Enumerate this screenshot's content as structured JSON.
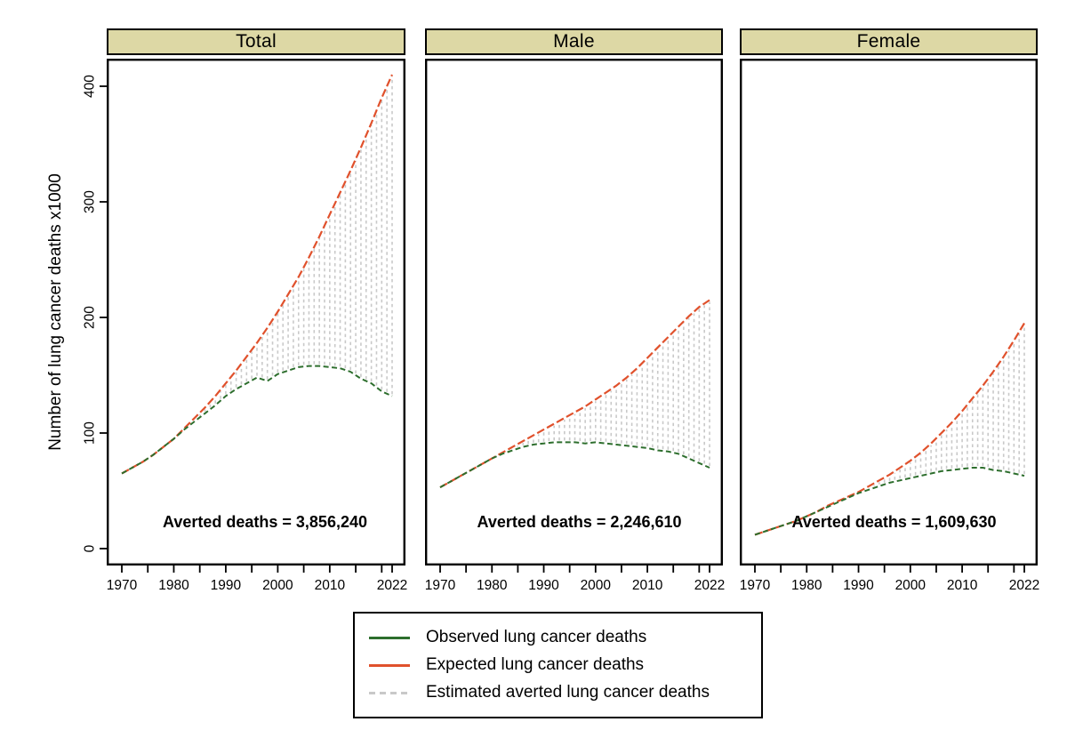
{
  "figure": {
    "background": "#ffffff",
    "ylabel": "Number of lung cancer deaths x1000"
  },
  "colors": {
    "strip_fill": "#ddd8a5",
    "strip_border": "#000000",
    "panel_border": "#000000",
    "observed": "#2d6e2d",
    "expected": "#e0512c",
    "averted": "#c9c9c9",
    "text": "#000000"
  },
  "axes": {
    "x_ticks_labeled": [
      1970,
      1980,
      1990,
      2000,
      2010,
      2022
    ],
    "x_ticks_minor": [
      1975,
      1985,
      1995,
      2005,
      2015,
      2020
    ],
    "y_ticks": [
      0,
      100,
      200,
      300,
      400
    ]
  },
  "legend": {
    "items": [
      {
        "name": "observed",
        "label": "Observed lung cancer deaths",
        "color": "#2d6e2d",
        "style": "solid"
      },
      {
        "name": "expected",
        "label": "Expected lung cancer deaths",
        "color": "#e0512c",
        "style": "solid"
      },
      {
        "name": "averted",
        "label": "Estimated averted lung cancer deaths",
        "color": "#c9c9c9",
        "style": "dashed"
      }
    ]
  },
  "chart_data": {
    "type": "line",
    "title": "",
    "xlabel": "",
    "ylabel": "Number of lung cancer deaths x1000",
    "x_range": [
      1970,
      2022
    ],
    "ylim": [
      0,
      420
    ],
    "x": [
      1970,
      1972,
      1974,
      1976,
      1978,
      1980,
      1982,
      1984,
      1986,
      1988,
      1990,
      1992,
      1994,
      1996,
      1998,
      2000,
      2002,
      2004,
      2006,
      2008,
      2010,
      2012,
      2014,
      2016,
      2018,
      2020,
      2022
    ],
    "panels": [
      {
        "title": "Total",
        "annotation": "Averted deaths = 3,856,240",
        "averted_total": 3856240,
        "observed": [
          65,
          70,
          75,
          81,
          88,
          95,
          103,
          110,
          117,
          124,
          132,
          138,
          143,
          148,
          145,
          151,
          154,
          157,
          158,
          158,
          157,
          156,
          153,
          147,
          143,
          136,
          132
        ],
        "expected": [
          65,
          70,
          75,
          81,
          88,
          95,
          104,
          113,
          122,
          132,
          143,
          154,
          166,
          178,
          191,
          205,
          220,
          235,
          252,
          270,
          289,
          308,
          327,
          347,
          368,
          390,
          410
        ]
      },
      {
        "title": "Male",
        "annotation": "Averted deaths = 2,246,610",
        "averted_total": 2246610,
        "observed": [
          53,
          58,
          63,
          68,
          73,
          78,
          82,
          85,
          88,
          90,
          91,
          92,
          92,
          92,
          91,
          92,
          91,
          90,
          89,
          88,
          87,
          85,
          84,
          82,
          78,
          74,
          70
        ],
        "expected": [
          53,
          58,
          63,
          68,
          73,
          78,
          83,
          88,
          93,
          98,
          103,
          108,
          113,
          118,
          123,
          129,
          135,
          141,
          148,
          156,
          165,
          174,
          183,
          192,
          201,
          209,
          215
        ]
      },
      {
        "title": "Female",
        "annotation": "Averted deaths = 1,609,630",
        "averted_total": 1609630,
        "observed": [
          12,
          15,
          18,
          21,
          24,
          28,
          32,
          36,
          40,
          44,
          48,
          51,
          54,
          57,
          59,
          61,
          63,
          65,
          67,
          68,
          69,
          70,
          70,
          68,
          67,
          65,
          63
        ],
        "expected": [
          12,
          15,
          18,
          21,
          24,
          28,
          32,
          37,
          41,
          45,
          49,
          54,
          59,
          64,
          70,
          76,
          83,
          91,
          100,
          109,
          119,
          130,
          141,
          153,
          166,
          180,
          195
        ]
      }
    ]
  }
}
